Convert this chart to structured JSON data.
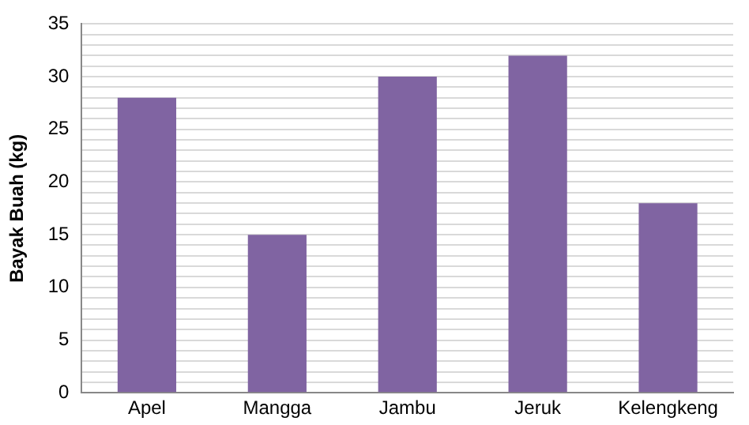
{
  "chart_data": {
    "type": "bar",
    "ylabel": "Bayak Buah (kg)",
    "categories": [
      "Apel",
      "Mangga",
      "Jambu",
      "Jeruk",
      "Kelengkeng"
    ],
    "values": [
      28,
      15,
      30,
      32,
      18
    ],
    "color": "#8064a2",
    "ylim": [
      0,
      35
    ],
    "yticks": [
      0,
      {
        "value": 1,
        "label": null
      },
      {
        "value": 2,
        "label": null
      },
      {
        "value": 3,
        "label": null
      },
      {
        "value": 4,
        "label": null
      },
      5,
      {
        "value": 6,
        "label": null
      },
      {
        "value": 7,
        "label": null
      },
      {
        "value": 8,
        "label": null
      },
      {
        "value": 9,
        "label": null
      },
      10,
      {
        "value": 11,
        "label": null
      },
      {
        "value": 12,
        "label": null
      },
      {
        "value": 13,
        "label": null
      },
      {
        "value": 14,
        "label": null
      },
      15,
      {
        "value": 16,
        "label": null
      },
      {
        "value": 17,
        "label": null
      },
      {
        "value": 18,
        "label": null
      },
      {
        "value": 19,
        "label": null
      },
      20,
      {
        "value": 21,
        "label": null
      },
      {
        "value": 22,
        "label": null
      },
      {
        "value": 23,
        "label": null
      },
      {
        "value": 24,
        "label": null
      },
      25,
      {
        "value": 26,
        "label": null
      },
      {
        "value": 27,
        "label": null
      },
      {
        "value": 28,
        "label": null
      },
      {
        "value": 29,
        "label": null
      },
      30,
      {
        "value": 31,
        "label": null
      },
      {
        "value": 32,
        "label": null
      },
      {
        "value": 33,
        "label": null
      },
      {
        "value": 34,
        "label": null
      },
      35
    ],
    "grid": "y",
    "legend": false
  }
}
